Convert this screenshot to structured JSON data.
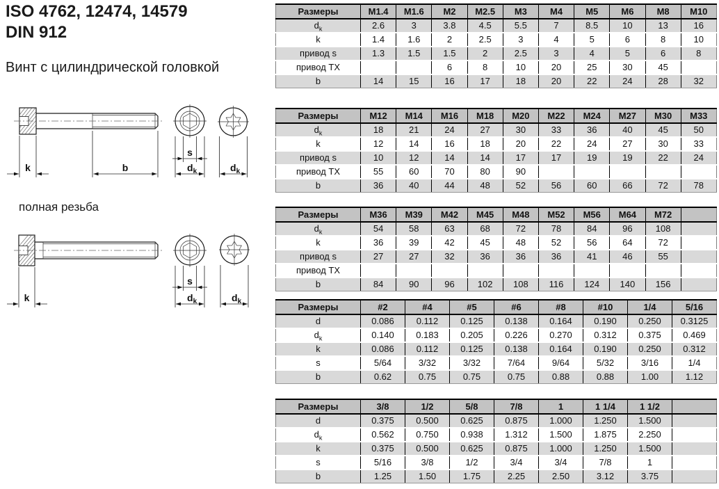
{
  "page": {
    "title_line1": "ISO 4762, 12474, 14579",
    "title_line2": "DIN 912",
    "subtitle": "Винт с цилиндрической головкой",
    "full_thread_label": "полная резьба"
  },
  "dim_labels": {
    "k": "k",
    "b": "b",
    "s": "s",
    "dk_main": "d",
    "dk_sub": "k"
  },
  "colors": {
    "header_bg": "#c3c3c3",
    "row_stripe": "#d9d9d9",
    "table_border": "#000000",
    "row_separator": "#ffffff"
  },
  "tables": [
    {
      "name": "dimensions-table-m1_4-m10",
      "header": [
        "Размеры",
        "M1.4",
        "M1.6",
        "M2",
        "M2.5",
        "M3",
        "M4",
        "M5",
        "M6",
        "M8",
        "M10"
      ],
      "rows": [
        {
          "label": {
            "main": "d",
            "sub": "k"
          },
          "values": [
            "2.6",
            "3",
            "3.8",
            "4.5",
            "5.5",
            "7",
            "8.5",
            "10",
            "13",
            "16"
          ]
        },
        {
          "label": "k",
          "values": [
            "1.4",
            "1.6",
            "2",
            "2.5",
            "3",
            "4",
            "5",
            "6",
            "8",
            "10"
          ]
        },
        {
          "label": "привод s",
          "values": [
            "1.3",
            "1.5",
            "1.5",
            "2",
            "2.5",
            "3",
            "4",
            "5",
            "6",
            "8"
          ]
        },
        {
          "label": "привод TX",
          "values": [
            "",
            "",
            "6",
            "8",
            "10",
            "20",
            "25",
            "30",
            "45",
            ""
          ]
        },
        {
          "label": "b",
          "values": [
            "14",
            "15",
            "16",
            "17",
            "18",
            "20",
            "22",
            "24",
            "28",
            "32"
          ]
        }
      ]
    },
    {
      "name": "dimensions-table-m12-m33",
      "header": [
        "Размеры",
        "M12",
        "M14",
        "M16",
        "M18",
        "M20",
        "M22",
        "M24",
        "M27",
        "M30",
        "M33"
      ],
      "rows": [
        {
          "label": {
            "main": "d",
            "sub": "k"
          },
          "values": [
            "18",
            "21",
            "24",
            "27",
            "30",
            "33",
            "36",
            "40",
            "45",
            "50"
          ]
        },
        {
          "label": "k",
          "values": [
            "12",
            "14",
            "16",
            "18",
            "20",
            "22",
            "24",
            "27",
            "30",
            "33"
          ]
        },
        {
          "label": "привод s",
          "values": [
            "10",
            "12",
            "14",
            "14",
            "17",
            "17",
            "19",
            "19",
            "22",
            "24"
          ]
        },
        {
          "label": "привод TX",
          "values": [
            "55",
            "60",
            "70",
            "80",
            "90",
            "",
            "",
            "",
            "",
            ""
          ]
        },
        {
          "label": "b",
          "values": [
            "36",
            "40",
            "44",
            "48",
            "52",
            "56",
            "60",
            "66",
            "72",
            "78"
          ]
        }
      ]
    },
    {
      "name": "dimensions-table-m36-m72",
      "header": [
        "Размеры",
        "M36",
        "M39",
        "M42",
        "M45",
        "M48",
        "M52",
        "M56",
        "M64",
        "M72",
        ""
      ],
      "rows": [
        {
          "label": {
            "main": "d",
            "sub": "k"
          },
          "values": [
            "54",
            "58",
            "63",
            "68",
            "72",
            "78",
            "84",
            "96",
            "108",
            ""
          ]
        },
        {
          "label": "k",
          "values": [
            "36",
            "39",
            "42",
            "45",
            "48",
            "52",
            "56",
            "64",
            "72",
            ""
          ]
        },
        {
          "label": "привод s",
          "values": [
            "27",
            "27",
            "32",
            "36",
            "36",
            "36",
            "41",
            "46",
            "55",
            ""
          ]
        },
        {
          "label": "привод TX",
          "values": [
            "",
            "",
            "",
            "",
            "",
            "",
            "",
            "",
            "",
            ""
          ]
        },
        {
          "label": "b",
          "values": [
            "84",
            "90",
            "96",
            "102",
            "108",
            "116",
            "124",
            "140",
            "156",
            ""
          ]
        }
      ]
    },
    {
      "name": "dimensions-table-inch-small",
      "header": [
        "Размеры",
        "#2",
        "#4",
        "#5",
        "#6",
        "#8",
        "#10",
        "1/4",
        "5/16"
      ],
      "rows": [
        {
          "label": "d",
          "values": [
            "0.086",
            "0.112",
            "0.125",
            "0.138",
            "0.164",
            "0.190",
            "0.250",
            "0.3125"
          ]
        },
        {
          "label": {
            "main": "d",
            "sub": "k"
          },
          "values": [
            "0.140",
            "0.183",
            "0.205",
            "0.226",
            "0.270",
            "0.312",
            "0.375",
            "0.469"
          ]
        },
        {
          "label": "k",
          "values": [
            "0.086",
            "0.112",
            "0.125",
            "0.138",
            "0.164",
            "0.190",
            "0.250",
            "0.312"
          ]
        },
        {
          "label": "s",
          "values": [
            "5/64",
            "3/32",
            "3/32",
            "7/64",
            "9/64",
            "5/32",
            "3/16",
            "1/4"
          ]
        },
        {
          "label": "b",
          "values": [
            "0.62",
            "0.75",
            "0.75",
            "0.75",
            "0.88",
            "0.88",
            "1.00",
            "1.12"
          ]
        }
      ]
    },
    {
      "name": "dimensions-table-inch-large",
      "header": [
        "Размеры",
        "3/8",
        "1/2",
        "5/8",
        "7/8",
        "1",
        "1 1/4",
        "1 1/2",
        ""
      ],
      "rows": [
        {
          "label": "d",
          "values": [
            "0.375",
            "0.500",
            "0.625",
            "0.875",
            "1.000",
            "1.250",
            "1.500",
            ""
          ]
        },
        {
          "label": {
            "main": "d",
            "sub": "k"
          },
          "values": [
            "0.562",
            "0.750",
            "0.938",
            "1.312",
            "1.500",
            "1.875",
            "2.250",
            ""
          ]
        },
        {
          "label": "k",
          "values": [
            "0.375",
            "0.500",
            "0.625",
            "0.875",
            "1.000",
            "1.250",
            "1.500",
            ""
          ]
        },
        {
          "label": "s",
          "values": [
            "5/16",
            "3/8",
            "1/2",
            "3/4",
            "3/4",
            "7/8",
            "1",
            ""
          ]
        },
        {
          "label": "b",
          "values": [
            "1.25",
            "1.50",
            "1.75",
            "2.25",
            "2.50",
            "3.12",
            "3.75",
            ""
          ]
        }
      ]
    }
  ]
}
